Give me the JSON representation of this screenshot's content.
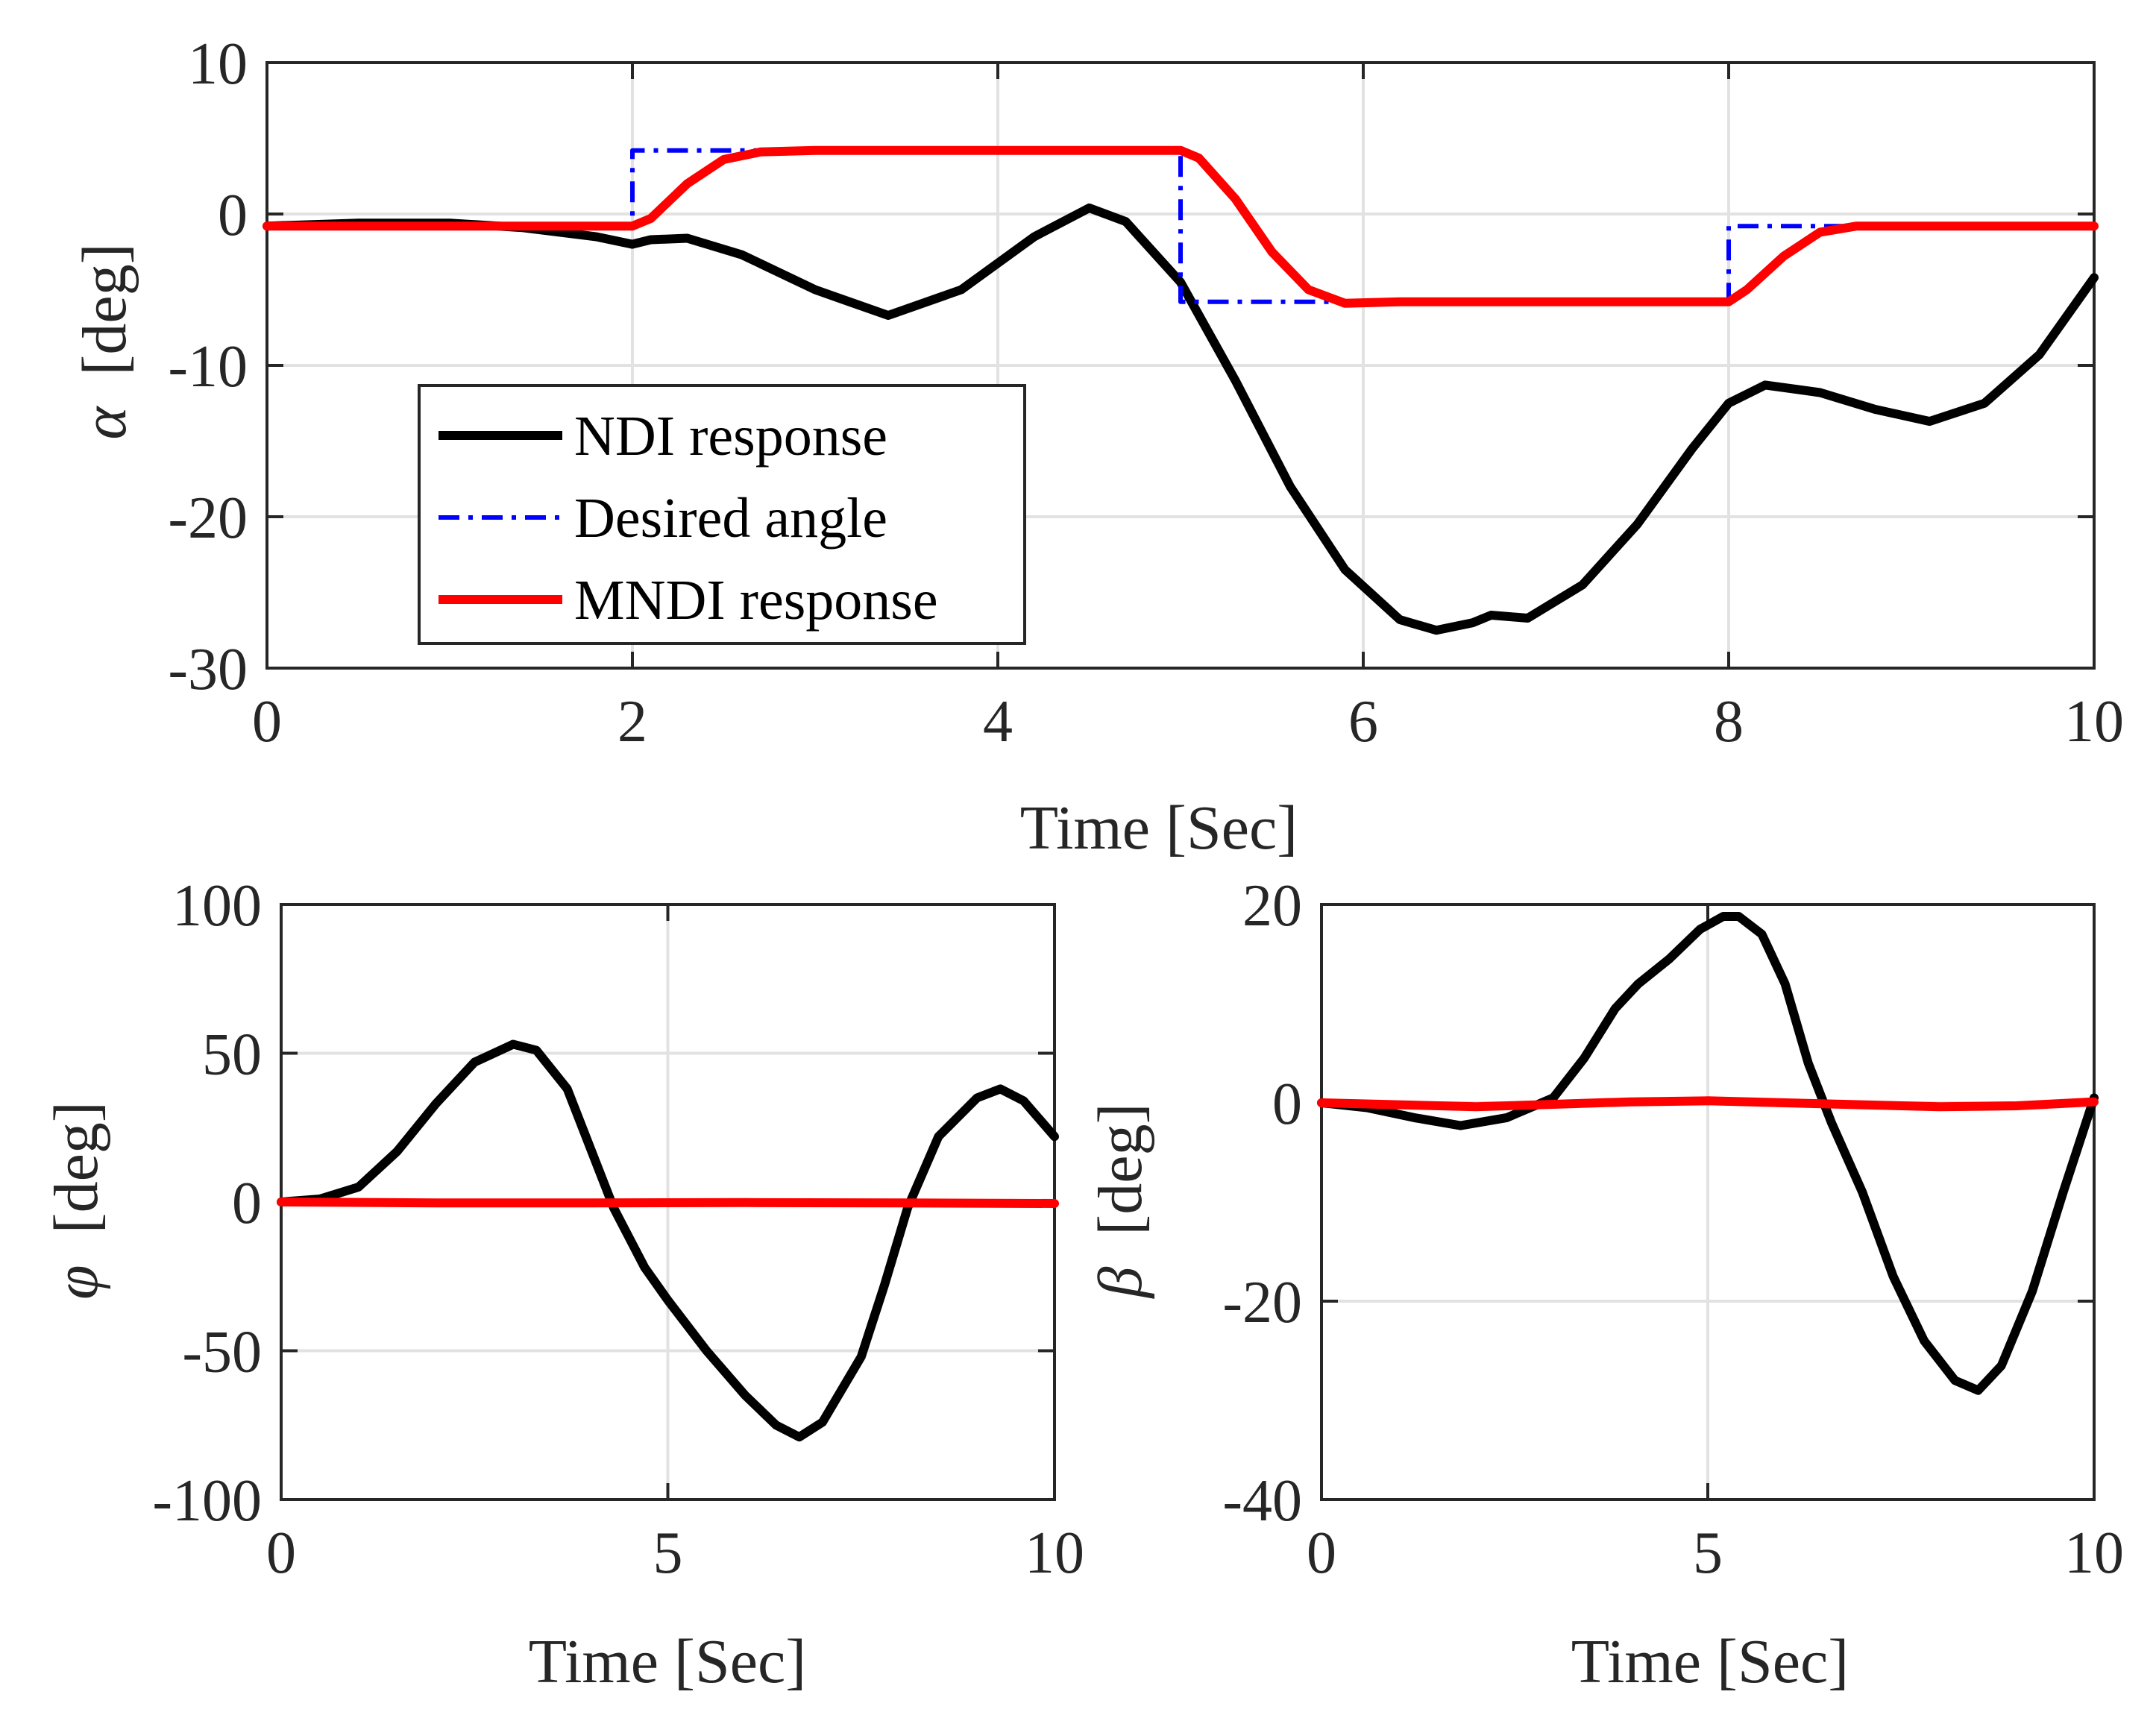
{
  "chart_data": [
    {
      "type": "line",
      "id": "alpha",
      "xlabel": "Time  [Sec]",
      "ylabel_symbol": "α",
      "ylabel_unit": "  [deg]",
      "xlim": [
        0,
        10
      ],
      "ylim": [
        -30,
        10
      ],
      "xticks": [
        0,
        2,
        4,
        6,
        8,
        10
      ],
      "yticks": [
        -30,
        -20,
        -10,
        0,
        10
      ],
      "xtick_labels": [
        "0",
        "2",
        "4",
        "6",
        "8",
        "10"
      ],
      "ytick_labels": [
        "-30",
        "-20",
        "-10",
        "0",
        "10"
      ],
      "grid": true,
      "legend": {
        "placement": "lower-left",
        "entries": [
          "NDI response",
          "Desired angle",
          "MNDI response"
        ]
      },
      "series": [
        {
          "name": "NDI response",
          "color": "#000000",
          "style": "solid",
          "x": [
            0,
            0.5,
            1,
            1.4,
            1.8,
            2.0,
            2.1,
            2.3,
            2.6,
            3.0,
            3.4,
            3.8,
            4.2,
            4.5,
            4.7,
            5.0,
            5.3,
            5.6,
            5.9,
            6.2,
            6.4,
            6.6,
            6.7,
            6.9,
            7.2,
            7.5,
            7.8,
            8.0,
            8.2,
            8.5,
            8.8,
            9.1,
            9.4,
            9.7,
            10
          ],
          "y": [
            -0.8,
            -0.6,
            -0.6,
            -0.9,
            -1.5,
            -2.0,
            -1.7,
            -1.6,
            -2.7,
            -5.0,
            -6.7,
            -5.0,
            -1.5,
            0.4,
            -0.5,
            -4.5,
            -11.0,
            -18.0,
            -23.5,
            -26.8,
            -27.5,
            -27.0,
            -26.5,
            -26.7,
            -24.5,
            -20.5,
            -15.5,
            -12.5,
            -11.3,
            -11.8,
            -12.9,
            -13.7,
            -12.5,
            -9.3,
            -4.2
          ]
        },
        {
          "name": "Desired angle",
          "color": "#0000ff",
          "style": "dashdot",
          "x": [
            0,
            2,
            2,
            5,
            5,
            8,
            8,
            10
          ],
          "y": [
            -0.8,
            -0.8,
            4.2,
            4.2,
            -5.8,
            -5.8,
            -0.8,
            -0.8
          ]
        },
        {
          "name": "MNDI response",
          "color": "#ff0000",
          "style": "solid",
          "x": [
            0,
            2.0,
            2.1,
            2.3,
            2.5,
            2.7,
            3.0,
            4.0,
            5.0,
            5.1,
            5.3,
            5.5,
            5.7,
            5.9,
            6.2,
            7.0,
            8.0,
            8.1,
            8.3,
            8.5,
            8.7,
            9.0,
            10
          ],
          "y": [
            -0.8,
            -0.8,
            -0.3,
            2.0,
            3.6,
            4.1,
            4.2,
            4.2,
            4.2,
            3.7,
            1.0,
            -2.5,
            -5.0,
            -5.9,
            -5.8,
            -5.8,
            -5.8,
            -5.0,
            -2.8,
            -1.2,
            -0.8,
            -0.8,
            -0.8
          ]
        }
      ]
    },
    {
      "type": "line",
      "id": "phi",
      "xlabel": "Time  [Sec]",
      "ylabel_symbol": "φ",
      "ylabel_unit": "  [deg]",
      "xlim": [
        0,
        10
      ],
      "ylim": [
        -100,
        100
      ],
      "xticks": [
        0,
        5,
        10
      ],
      "yticks": [
        -100,
        -50,
        0,
        50,
        100
      ],
      "xtick_labels": [
        "0",
        "5",
        "10"
      ],
      "ytick_labels": [
        "-100",
        "-50",
        "0",
        "50",
        "100"
      ],
      "grid": true,
      "series": [
        {
          "name": "NDI response",
          "color": "#000000",
          "style": "solid",
          "x": [
            0,
            0.5,
            1.0,
            1.5,
            2.0,
            2.5,
            3.0,
            3.3,
            3.7,
            4.0,
            4.3,
            4.7,
            5.0,
            5.5,
            6.0,
            6.4,
            6.7,
            7.0,
            7.5,
            7.8,
            8.1,
            8.5,
            9.0,
            9.3,
            9.6,
            10
          ],
          "y": [
            0,
            1,
            5,
            17,
            33,
            47,
            53,
            51,
            38,
            18,
            -2,
            -22,
            -33,
            -50,
            -65,
            -75,
            -79,
            -74,
            -52,
            -28,
            -2,
            22,
            35,
            38,
            34,
            22
          ]
        },
        {
          "name": "MNDI response",
          "color": "#ff0000",
          "style": "solid",
          "x": [
            0,
            2,
            4,
            6,
            8,
            10
          ],
          "y": [
            0,
            -0.3,
            -0.3,
            -0.2,
            -0.3,
            -0.5
          ]
        }
      ]
    },
    {
      "type": "line",
      "id": "beta",
      "xlabel": "Time  [Sec]",
      "ylabel_symbol": "β",
      "ylabel_unit": "  [deg]",
      "xlim": [
        0,
        10
      ],
      "ylim": [
        -40,
        20
      ],
      "xticks": [
        0,
        5,
        10
      ],
      "yticks": [
        -40,
        -20,
        0,
        20
      ],
      "xtick_labels": [
        "0",
        "5",
        "10"
      ],
      "ytick_labels": [
        "-40",
        "-20",
        "0",
        "20"
      ],
      "grid": true,
      "series": [
        {
          "name": "NDI response",
          "color": "#000000",
          "style": "solid",
          "x": [
            0,
            0.6,
            1.2,
            1.8,
            2.4,
            3.0,
            3.4,
            3.8,
            4.1,
            4.5,
            4.9,
            5.2,
            5.4,
            5.7,
            6.0,
            6.3,
            6.6,
            7.0,
            7.4,
            7.8,
            8.2,
            8.5,
            8.8,
            9.2,
            9.6,
            10
          ],
          "y": [
            0,
            -0.5,
            -1.5,
            -2.3,
            -1.5,
            0.5,
            4.5,
            9.5,
            12.0,
            14.5,
            17.5,
            18.8,
            18.8,
            17.0,
            12.0,
            4.0,
            -2.0,
            -9.0,
            -17.5,
            -24.0,
            -28.0,
            -29.0,
            -26.5,
            -19.0,
            -9.0,
            0.5
          ]
        },
        {
          "name": "MNDI response",
          "color": "#ff0000",
          "style": "solid",
          "x": [
            0,
            2,
            4,
            5,
            6,
            8,
            9,
            10
          ],
          "y": [
            0,
            -0.4,
            0.1,
            0.2,
            0,
            -0.4,
            -0.3,
            0.1
          ]
        }
      ]
    }
  ]
}
